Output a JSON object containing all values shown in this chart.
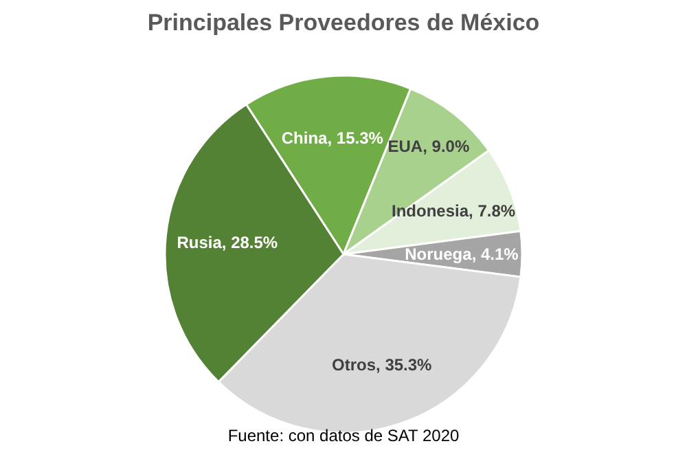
{
  "chart_data": {
    "type": "pie",
    "title": "Principales Proveedores de México",
    "categories": [
      "China",
      "EUA",
      "Indonesia",
      "Noruega",
      "Otros",
      "Rusia"
    ],
    "values": [
      15.3,
      9.0,
      7.8,
      4.1,
      35.3,
      28.5
    ],
    "colors": [
      "#70ad47",
      "#a9d18e",
      "#e2efda",
      "#a5a5a5",
      "#d9d9d9",
      "#548235"
    ],
    "value_labels": [
      ", 15.3%",
      ", 9.0%",
      ", 7.8%",
      ", 4.1%",
      ", 35.3%",
      ", 28.5%"
    ],
    "annotations": [
      "Fuente: con datos de SAT 2020"
    ]
  }
}
